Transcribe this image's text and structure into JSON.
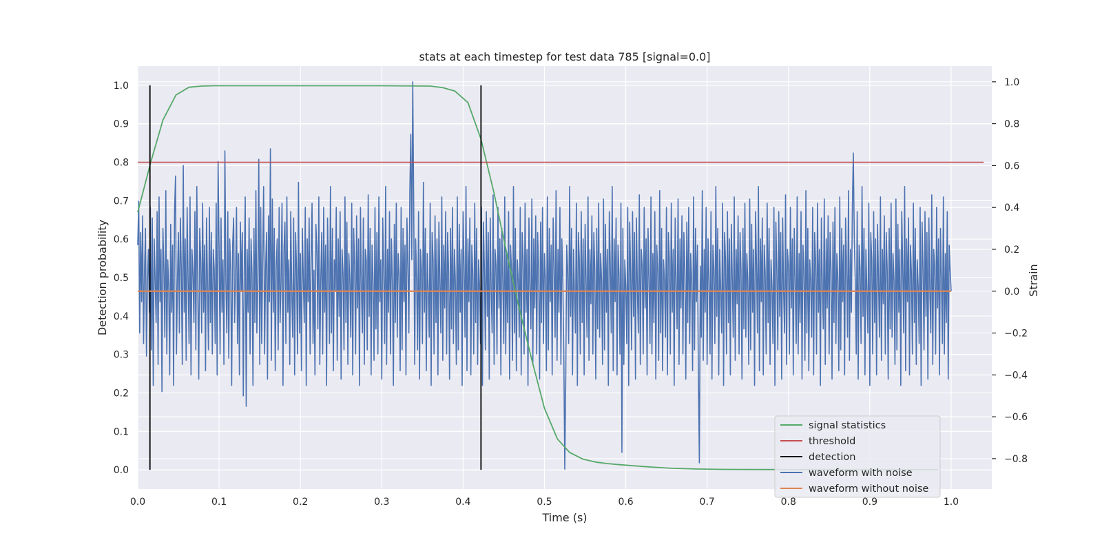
{
  "chart_data": {
    "type": "line",
    "title": "stats at each timestep for test data 785 [signal=0.0]",
    "xlabel": "Time (s)",
    "ylabel": "Detection probability",
    "y2label": "Strain",
    "xlim": [
      0.0,
      1.05
    ],
    "ylim": [
      -0.05,
      1.05
    ],
    "y2lim": [
      -0.945,
      1.075
    ],
    "xticks": [
      0.0,
      0.1,
      0.2,
      0.3,
      0.4,
      0.5,
      0.6,
      0.7,
      0.8,
      0.9,
      1.0
    ],
    "xtick_labels": [
      "0.0",
      "0.1",
      "0.2",
      "0.3",
      "0.4",
      "0.5",
      "0.6",
      "0.7",
      "0.8",
      "0.9",
      "1.0"
    ],
    "yticks": [
      0.0,
      0.1,
      0.2,
      0.3,
      0.4,
      0.5,
      0.6,
      0.7,
      0.8,
      0.9,
      1.0
    ],
    "ytick_labels": [
      "0.0",
      "0.1",
      "0.2",
      "0.3",
      "0.4",
      "0.5",
      "0.6",
      "0.7",
      "0.8",
      "0.9",
      "1.0"
    ],
    "y2ticks": [
      -0.8,
      -0.6,
      -0.4,
      -0.2,
      0.0,
      0.2,
      0.4,
      0.6,
      0.8,
      1.0
    ],
    "y2tick_labels": [
      "−0.8",
      "−0.6",
      "−0.4",
      "−0.2",
      "0.0",
      "0.2",
      "0.4",
      "0.6",
      "0.8",
      "1.0"
    ],
    "grid": true,
    "legend_position": "lower-right",
    "series": [
      {
        "name": "signal statistics",
        "axis": "left",
        "color": "#55a868",
        "x": [
          0.0,
          0.016,
          0.031,
          0.047,
          0.063,
          0.078,
          0.094,
          0.11,
          0.2,
          0.3,
          0.36,
          0.375,
          0.39,
          0.406,
          0.422,
          0.438,
          0.453,
          0.469,
          0.484,
          0.5,
          0.516,
          0.531,
          0.547,
          0.563,
          0.578,
          0.594,
          0.625,
          0.656,
          0.688,
          0.72,
          0.8,
          0.9,
          0.984
        ],
        "y": [
          0.67,
          0.8,
          0.91,
          0.975,
          0.995,
          0.998,
          0.999,
          0.999,
          0.999,
          0.999,
          0.998,
          0.994,
          0.985,
          0.955,
          0.86,
          0.72,
          0.57,
          0.42,
          0.29,
          0.16,
          0.08,
          0.045,
          0.028,
          0.02,
          0.016,
          0.013,
          0.008,
          0.004,
          0.002,
          0.001,
          0.0005,
          0.0005,
          0.0005
        ]
      },
      {
        "name": "threshold",
        "axis": "left",
        "color": "#c44e52",
        "x": [
          0.0,
          1.04
        ],
        "y": [
          0.8,
          0.8
        ]
      },
      {
        "name": "detection",
        "axis": "left",
        "color": "#000000",
        "segments": [
          {
            "x": 0.015,
            "y": [
              0.0,
              1.0
            ]
          },
          {
            "x": 0.422,
            "y": [
              0.0,
              1.0
            ]
          }
        ]
      },
      {
        "name": "waveform with noise",
        "axis": "right",
        "color": "#4c72b0",
        "x_start": 0.0,
        "x_end": 1.0,
        "y": [
          0.22,
          0.43,
          -0.2,
          0.28,
          -0.05,
          0.36,
          -0.25,
          0.1,
          0.3,
          -0.31,
          0.05,
          0.2,
          -0.1,
          0.4,
          -0.28,
          0.35,
          -0.45,
          0.25,
          0.05,
          -0.15,
          0.38,
          -0.35,
          0.45,
          -0.05,
          0.2,
          -0.48,
          0.3,
          0.1,
          -0.22,
          0.48,
          -0.3,
          0.15,
          0.02,
          -0.4,
          0.32,
          -0.1,
          0.22,
          -0.45,
          0.38,
          0.55,
          -0.3,
          0.05,
          0.28,
          -0.2,
          0.35,
          0.1,
          -0.35,
          0.6,
          -0.1,
          0.25,
          -0.33,
          0.4,
          0.05,
          -0.25,
          0.45,
          -0.4,
          0.2,
          0.08,
          -0.15,
          0.38,
          -0.28,
          0.5,
          0.0,
          -0.42,
          0.3,
          0.15,
          -0.2,
          0.42,
          -0.1,
          0.22,
          -0.38,
          0.35,
          0.05,
          -0.28,
          0.4,
          -0.15,
          0.28,
          -0.3,
          0.2,
          0.1,
          -0.25,
          0.42,
          -0.4,
          0.62,
          0.2,
          -0.3,
          0.35,
          -0.1,
          0.15,
          -0.35,
          0.3,
          0.05,
          -0.2,
          0.38,
          -0.32,
          0.25,
          0.1,
          -0.45,
          0.22,
          0.35,
          -0.15,
          0.05,
          0.4,
          -0.25,
          0.18,
          -0.4,
          0.33,
          0.0,
          0.28,
          -0.5,
          0.1,
          0.45,
          -0.55,
          0.2,
          -0.1,
          0.35,
          -0.3,
          0.25,
          0.08,
          -0.45,
          0.3,
          -0.15,
          0.48,
          -0.2,
          0.05,
          0.63,
          -0.35,
          0.4,
          -0.25,
          0.15,
          0.5,
          -0.3,
          0.1,
          0.28,
          -0.42,
          0.36,
          -0.05,
          0.22,
          -0.33,
          0.44,
          -0.1,
          0.3,
          -0.38,
          0.12,
          0.25,
          -0.28,
          0.4,
          -0.15,
          0.05,
          0.42,
          -0.45,
          0.2,
          0.33,
          -0.25,
          0.45,
          -0.1,
          0.15,
          -0.35,
          0.38,
          0.0,
          -0.22,
          0.35,
          -0.4,
          0.28,
          0.1,
          -0.3,
          0.52,
          -0.2,
          0.18,
          -0.38,
          0.3,
          0.05,
          -0.15,
          0.4,
          -0.45,
          0.25,
          -0.05,
          0.35,
          -0.3,
          0.15,
          0.42,
          -0.25,
          0.1,
          -0.4,
          0.32,
          0.2,
          -0.18,
          0.45,
          -0.35,
          0.05,
          0.28,
          -0.3,
          0.4,
          -0.1,
          0.22,
          -0.45,
          0.35,
          0.1,
          -0.25,
          0.5,
          -0.2,
          0.3,
          -0.38,
          0.15,
          0.0,
          0.4,
          -0.33,
          0.25,
          -0.12,
          0.38,
          -0.42,
          0.2,
          0.08,
          -0.28,
          0.45,
          -0.15,
          0.33,
          -0.35,
          0.18,
          0.05,
          -0.22,
          0.42,
          -0.4,
          0.3,
          0.12,
          -0.3,
          0.36,
          -0.08,
          0.25,
          -0.45,
          0.4,
          0.0,
          -0.2,
          0.35,
          -0.35,
          0.2,
          0.15,
          -0.28,
          0.46,
          -0.12,
          0.3,
          -0.4,
          0.22,
          0.05,
          -0.33,
          0.4,
          -0.18,
          0.28,
          -0.3,
          0.45,
          -0.05,
          0.15,
          -0.42,
          0.35,
          0.1,
          -0.25,
          0.5,
          -0.35,
          0.2,
          -0.1,
          0.38,
          -0.3,
          0.25,
          0.05,
          -0.45,
          0.32,
          -0.15,
          0.42,
          -0.22,
          0.18,
          0.08,
          -0.38,
          0.4,
          -0.28,
          0.3,
          -0.05,
          0.22,
          -0.4,
          0.35,
          0.12,
          -0.2,
          0.48,
          -0.3,
          0.15,
          -0.12,
          0.4,
          -0.35,
          0.25,
          0.05,
          -0.28,
          0.38,
          -0.42,
          0.2,
          0.1,
          -0.25,
          0.52,
          -0.1,
          0.3,
          -0.38,
          0.18,
          0.0,
          -0.22,
          0.42,
          -0.45,
          0.28,
          0.15,
          -0.3,
          0.36,
          -0.15,
          0.25,
          -0.4,
          0.33,
          0.05,
          -0.2,
          0.45,
          -0.33,
          0.22,
          -0.08,
          0.38,
          -0.3,
          0.28,
          0.1,
          -0.42,
          0.3,
          -0.18,
          0.4,
          -0.25,
          0.2,
          0.05,
          -0.35,
          0.45,
          -0.28,
          0.32,
          -0.1,
          0.2,
          -0.45,
          0.38,
          0.12,
          -0.22,
          0.5,
          -0.38,
          0.25,
          -0.05,
          0.35,
          -0.4,
          0.22,
          0.08,
          -0.3,
          0.42,
          -0.15,
          0.3,
          -0.35,
          0.15,
          0.02,
          -0.25,
          0.4,
          -0.45,
          0.33,
          0.1,
          -0.28,
          0.38,
          -0.12,
          0.28,
          -0.42,
          0.35,
          0.0,
          -0.2,
          0.46,
          -0.35,
          0.2,
          0.12,
          -0.3,
          0.4,
          -0.08,
          0.25,
          -0.4,
          0.3,
          0.05,
          -0.25,
          0.45,
          -0.3,
          0.18,
          -0.15,
          0.38,
          -0.42,
          0.22,
          0.1,
          -0.33,
          0.5,
          -0.2,
          0.3,
          -0.38,
          0.15,
          0.05,
          -0.22,
          0.4,
          -0.4,
          0.28,
          0.15,
          -0.3,
          0.42,
          -0.1,
          0.2,
          -0.45,
          0.35,
          0.02,
          -0.18,
          0.44,
          -0.35,
          0.25,
          -0.08,
          0.36,
          -0.3,
          0.28,
          0.1,
          -0.42,
          0.33,
          -0.15,
          0.4,
          -0.25,
          0.18,
          0.06,
          -0.38,
          0.45,
          -0.28,
          0.3,
          -0.05,
          0.22,
          -0.4,
          0.35,
          0.12,
          -0.22,
          0.48,
          -0.33,
          0.2,
          -0.1,
          0.4,
          -0.35,
          0.25,
          0.05,
          -0.3,
          0.38,
          -0.42,
          0.22,
          0.1,
          -0.25,
          0.5,
          -0.12,
          0.3,
          -0.4,
          0.2,
          0.0,
          -0.2,
          0.42,
          -0.45,
          0.28,
          0.15,
          -0.3,
          0.38,
          -0.15,
          0.25,
          -0.4,
          0.32,
          0.05,
          -0.22,
          0.45,
          -0.33,
          0.2,
          -0.06,
          0.36,
          -0.3,
          0.28,
          0.1,
          -0.42,
          0.3,
          -0.18,
          0.42,
          -0.22,
          0.18,
          0.05,
          -0.35,
          0.44,
          -0.28,
          0.32,
          -0.1,
          0.2,
          -0.45,
          0.38,
          0.12,
          -0.2,
          0.5,
          -0.38,
          0.25,
          -0.05,
          0.35,
          -0.4,
          0.22,
          0.08,
          -0.3,
          0.42,
          -0.15,
          0.3,
          -0.35,
          0.15,
          0.02,
          -0.25,
          0.4,
          -0.45,
          0.33,
          0.1,
          -0.28,
          0.38,
          -0.12,
          0.28,
          -0.42,
          0.35,
          0.0,
          -0.2,
          0.46,
          -0.35,
          0.2,
          0.12,
          -0.3,
          0.4,
          -0.08,
          0.25,
          -0.4,
          0.3,
          0.05,
          -0.25,
          0.45,
          -0.3,
          0.18,
          -0.15,
          0.38,
          -0.42,
          0.22,
          0.1,
          -0.33,
          0.48,
          -0.2,
          0.3,
          -0.38,
          0.15,
          0.05,
          -0.22,
          0.4,
          -0.4,
          0.28,
          0.15,
          -0.3,
          0.42,
          -0.1,
          0.2,
          -0.45,
          0.35,
          0.02,
          -0.18,
          0.44,
          -0.35,
          0.25,
          -0.08,
          0.36,
          -0.3,
          0.28,
          0.1,
          -0.42,
          0.33,
          -0.15,
          0.4,
          -0.25,
          0.18,
          0.06,
          -0.38,
          0.45,
          -0.28,
          0.3,
          -0.05,
          0.22,
          -0.4,
          0.35,
          0.12,
          -0.22,
          0.48,
          -0.33,
          0.2,
          -0.1,
          0.4,
          -0.35,
          0.25,
          0.05,
          -0.3,
          0.38,
          -0.42,
          0.22,
          0.1,
          -0.25,
          0.5,
          -0.12,
          0.3,
          -0.4,
          0.2,
          0.0,
          -0.2,
          0.42,
          -0.45,
          0.28,
          0.15,
          -0.3,
          0.38,
          -0.15,
          0.25,
          -0.4,
          0.32,
          0.05,
          -0.22,
          0.45,
          -0.33,
          0.2,
          -0.06,
          0.36,
          -0.3,
          0.28,
          0.1,
          -0.42,
          0.3,
          -0.18,
          0.42,
          -0.22,
          0.18,
          0.05,
          -0.35,
          0.44,
          -0.28,
          0.32,
          -0.1,
          0.2,
          -0.45,
          0.38,
          0.12,
          -0.2,
          0.5,
          -0.38,
          0.25,
          -0.05,
          0.35,
          -0.4,
          0.22,
          0.08,
          -0.3,
          0.42,
          -0.15,
          0.3,
          -0.35,
          0.15,
          0.02,
          -0.25,
          0.4,
          -0.45,
          0.33,
          0.1,
          -0.28,
          0.38,
          -0.12,
          0.28,
          -0.42,
          0.35,
          0.0,
          -0.2,
          0.46,
          -0.35,
          0.2,
          0.12,
          -0.3,
          0.4,
          -0.08,
          0.25,
          -0.4,
          0.3,
          0.05,
          -0.25,
          0.45,
          -0.3,
          0.18,
          -0.15,
          0.38,
          -0.42,
          0.22,
          0.1,
          -0.33,
          0.48,
          -0.2,
          0.3,
          -0.38,
          0.15,
          0.05,
          -0.22,
          0.4,
          -0.4,
          0.28,
          0.15,
          -0.3,
          0.42,
          -0.1,
          0.2,
          -0.45,
          0.35,
          0.02,
          -0.18,
          0.44,
          -0.35,
          0.25,
          -0.08,
          0.36,
          -0.3,
          0.28,
          0.1,
          -0.42,
          0.33,
          -0.15,
          0.4,
          -0.25,
          0.18,
          0.06,
          -0.38,
          0.45,
          -0.28,
          0.3,
          -0.05,
          0.22,
          -0.4,
          0.35,
          0.12,
          -0.22,
          0.48,
          -0.33,
          0.2,
          -0.1,
          0.4,
          -0.35,
          0.25,
          0.05,
          -0.3,
          0.38,
          -0.42,
          0.22,
          0.1,
          -0.25,
          0.5,
          -0.12,
          0.3,
          -0.4,
          0.2,
          0.0,
          -0.2,
          0.42,
          -0.45,
          0.28,
          0.15,
          -0.3,
          0.38,
          -0.15,
          0.25,
          -0.4,
          0.32,
          0.05,
          -0.22,
          0.45,
          -0.33,
          0.2,
          -0.06,
          0.36,
          -0.3,
          0.28,
          0.1,
          -0.42,
          0.3,
          -0.18,
          0.42,
          -0.22,
          0.18,
          0.05,
          -0.35,
          0.44,
          -0.28,
          0.32,
          -0.1,
          0.2,
          -0.45,
          0.38,
          0.12,
          -0.2,
          0.5,
          -0.38,
          0.25,
          -0.05,
          0.35,
          -0.4,
          0.22,
          0.08,
          -0.3,
          0.42,
          -0.15,
          0.3,
          -0.35,
          0.15,
          0.02,
          -0.25,
          0.4,
          -0.45,
          0.33,
          0.1,
          -0.28,
          0.38,
          -0.12,
          0.28,
          -0.42,
          0.35,
          0.0,
          -0.2,
          0.46,
          -0.35,
          0.2,
          0.12,
          -0.3,
          0.4,
          -0.08,
          0.25,
          -0.4,
          0.3,
          0.05,
          -0.25,
          0.45,
          -0.3,
          0.18,
          -0.15,
          0.38,
          -0.42,
          0.22,
          0.1,
          0.0
        ],
        "highlights": [
          {
            "x": 0.107,
            "y": 0.67
          },
          {
            "x": 0.163,
            "y": 0.68
          },
          {
            "x": 0.336,
            "y": 0.75
          },
          {
            "x": 0.338,
            "y": 1.0
          },
          {
            "x": 0.525,
            "y": -0.85
          },
          {
            "x": 0.595,
            "y": -0.77
          },
          {
            "x": 0.69,
            "y": -0.82
          },
          {
            "x": 0.88,
            "y": 0.66
          }
        ]
      },
      {
        "name": "waveform without noise",
        "axis": "right",
        "color": "#dd8452",
        "x": [
          0.0,
          1.0
        ],
        "y": [
          0.0,
          0.0
        ]
      }
    ]
  }
}
